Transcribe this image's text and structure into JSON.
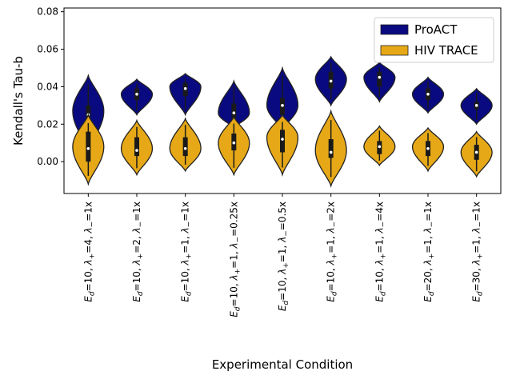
{
  "chart_data": {
    "type": "violin",
    "title": "",
    "xlabel": "Experimental Condition",
    "ylabel": "Kendall's Tau-b",
    "ylim": [
      -0.017,
      0.082
    ],
    "yticks": [
      0.0,
      0.02,
      0.04,
      0.06,
      0.08
    ],
    "ytick_labels": [
      "0.00",
      "0.02",
      "0.04",
      "0.06",
      "0.08"
    ],
    "grid": false,
    "legend_position": "top-right",
    "categories": [
      {
        "Ed": "10",
        "lp": "4",
        "lm": "1x"
      },
      {
        "Ed": "10",
        "lp": "2",
        "lm": "1x"
      },
      {
        "Ed": "10",
        "lp": "1",
        "lm": "1x"
      },
      {
        "Ed": "10",
        "lp": "1",
        "lm": "0.25x"
      },
      {
        "Ed": "10",
        "lp": "1",
        "lm": "0.5x"
      },
      {
        "Ed": "10",
        "lp": "1",
        "lm": "2x"
      },
      {
        "Ed": "10",
        "lp": "1",
        "lm": "4x"
      },
      {
        "Ed": "20",
        "lp": "1",
        "lm": "1x"
      },
      {
        "Ed": "30",
        "lp": "1",
        "lm": "1x"
      }
    ],
    "series": [
      {
        "name": "ProACT",
        "color": "#0a0a80",
        "violins": [
          {
            "min": 0.006,
            "max": 0.046,
            "mode": 0.027,
            "halfwidth": 0.8,
            "q1": 0.018,
            "median": 0.025,
            "q3": 0.03
          },
          {
            "min": 0.025,
            "max": 0.044,
            "mode": 0.036,
            "halfwidth": 0.8,
            "q1": 0.033,
            "median": 0.036,
            "q3": 0.039
          },
          {
            "min": 0.025,
            "max": 0.047,
            "mode": 0.04,
            "halfwidth": 0.8,
            "q1": 0.035,
            "median": 0.039,
            "q3": 0.042
          },
          {
            "min": 0.018,
            "max": 0.043,
            "mode": 0.026,
            "halfwidth": 0.8,
            "q1": 0.023,
            "median": 0.026,
            "q3": 0.031
          },
          {
            "min": 0.017,
            "max": 0.05,
            "mode": 0.03,
            "halfwidth": 0.8,
            "q1": 0.025,
            "median": 0.03,
            "q3": 0.034
          },
          {
            "min": 0.03,
            "max": 0.056,
            "mode": 0.044,
            "halfwidth": 0.8,
            "q1": 0.039,
            "median": 0.043,
            "q3": 0.048
          },
          {
            "min": 0.032,
            "max": 0.053,
            "mode": 0.045,
            "halfwidth": 0.8,
            "q1": 0.04,
            "median": 0.045,
            "q3": 0.048
          },
          {
            "min": 0.026,
            "max": 0.045,
            "mode": 0.036,
            "halfwidth": 0.8,
            "q1": 0.033,
            "median": 0.036,
            "q3": 0.039
          },
          {
            "min": 0.02,
            "max": 0.039,
            "mode": 0.03,
            "halfwidth": 0.8,
            "q1": 0.028,
            "median": 0.03,
            "q3": 0.032
          }
        ]
      },
      {
        "name": "HIV TRACE",
        "color": "#e6a817",
        "violins": [
          {
            "min": -0.012,
            "max": 0.025,
            "mode": 0.008,
            "halfwidth": 0.8,
            "q1": 0.0,
            "median": 0.007,
            "q3": 0.016
          },
          {
            "min": -0.007,
            "max": 0.022,
            "mode": 0.007,
            "halfwidth": 0.8,
            "q1": 0.003,
            "median": 0.006,
            "q3": 0.013
          },
          {
            "min": -0.005,
            "max": 0.023,
            "mode": 0.007,
            "halfwidth": 0.8,
            "q1": 0.003,
            "median": 0.007,
            "q3": 0.013
          },
          {
            "min": -0.007,
            "max": 0.024,
            "mode": 0.01,
            "halfwidth": 0.8,
            "q1": 0.006,
            "median": 0.01,
            "q3": 0.015
          },
          {
            "min": -0.007,
            "max": 0.025,
            "mode": 0.013,
            "halfwidth": 0.8,
            "q1": 0.005,
            "median": 0.012,
            "q3": 0.017
          },
          {
            "min": -0.013,
            "max": 0.027,
            "mode": 0.006,
            "halfwidth": 0.8,
            "q1": 0.002,
            "median": 0.005,
            "q3": 0.012
          },
          {
            "min": -0.002,
            "max": 0.019,
            "mode": 0.008,
            "halfwidth": 0.8,
            "q1": 0.004,
            "median": 0.008,
            "q3": 0.011
          },
          {
            "min": -0.005,
            "max": 0.018,
            "mode": 0.008,
            "halfwidth": 0.8,
            "q1": 0.003,
            "median": 0.007,
            "q3": 0.011
          },
          {
            "min": -0.008,
            "max": 0.016,
            "mode": 0.005,
            "halfwidth": 0.8,
            "q1": 0.001,
            "median": 0.005,
            "q3": 0.009
          }
        ]
      }
    ]
  }
}
